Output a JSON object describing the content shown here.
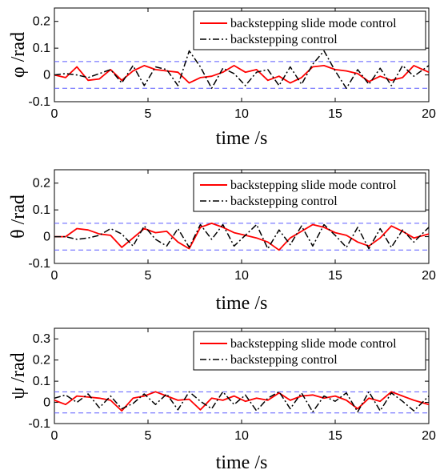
{
  "chart_data": [
    {
      "type": "line",
      "xlabel": "time /s",
      "ylabel": "φ /rad",
      "xlim": [
        0,
        20
      ],
      "ylim": [
        -0.1,
        0.25
      ],
      "xticks": [
        "0",
        "5",
        "10",
        "15",
        "20"
      ],
      "yticks": [
        "-0.1",
        "0",
        "0.1",
        "0.2"
      ],
      "bounds": [
        0.05,
        -0.05
      ],
      "grid": false,
      "legend_position": "top-right",
      "series": [
        {
          "name": "backstepping slide mode control",
          "color": "#ff0000",
          "x": [
            0,
            0.6,
            1.2,
            1.8,
            2.4,
            3.0,
            3.6,
            4.2,
            4.8,
            5.4,
            6.0,
            6.6,
            7.2,
            7.8,
            8.4,
            9.0,
            9.6,
            10.2,
            10.8,
            11.4,
            12.0,
            12.6,
            13.2,
            13.8,
            14.4,
            15.0,
            15.6,
            16.2,
            16.8,
            17.4,
            18.0,
            18.6,
            19.2,
            20.0
          ],
          "y": [
            0,
            -0.01,
            0.03,
            -0.02,
            -0.015,
            0.02,
            -0.02,
            0.015,
            0.035,
            0.02,
            0.015,
            0.01,
            -0.03,
            -0.01,
            -0.005,
            0.01,
            0.035,
            0.01,
            0.02,
            -0.02,
            -0.005,
            -0.03,
            -0.01,
            0.03,
            0.035,
            0.02,
            0.015,
            0.005,
            -0.025,
            -0.005,
            -0.02,
            -0.01,
            0.035,
            0.01
          ]
        },
        {
          "name": "backstepping control",
          "color": "#000000",
          "x": [
            0,
            0.6,
            1.2,
            1.8,
            2.4,
            3.0,
            3.6,
            4.2,
            4.8,
            5.4,
            6.0,
            6.6,
            7.2,
            7.8,
            8.4,
            9.0,
            9.6,
            10.2,
            10.8,
            11.4,
            12.0,
            12.6,
            13.2,
            13.8,
            14.4,
            15.0,
            15.6,
            16.2,
            16.8,
            17.4,
            18.0,
            18.6,
            19.2,
            20.0
          ],
          "y": [
            0,
            0.005,
            0,
            -0.01,
            0.005,
            0.02,
            -0.03,
            0.035,
            -0.04,
            0.03,
            0.02,
            -0.04,
            0.09,
            0.03,
            -0.05,
            0.025,
            0.005,
            -0.04,
            0.01,
            0.02,
            -0.04,
            0.03,
            -0.035,
            0.04,
            0.09,
            0.015,
            -0.05,
            0.02,
            -0.035,
            0.025,
            -0.04,
            0.035,
            -0.005,
            0.035
          ]
        }
      ]
    },
    {
      "type": "line",
      "xlabel": "time /s",
      "ylabel": "θ /rad",
      "xlim": [
        0,
        20
      ],
      "ylim": [
        -0.1,
        0.25
      ],
      "xticks": [
        "0",
        "5",
        "10",
        "15",
        "20"
      ],
      "yticks": [
        "-0.1",
        "0",
        "0.1",
        "0.2"
      ],
      "bounds": [
        0.05,
        -0.05
      ],
      "grid": false,
      "legend_position": "top-right",
      "series": [
        {
          "name": "backstepping slide mode control",
          "color": "#ff0000",
          "x": [
            0,
            0.6,
            1.2,
            1.8,
            2.4,
            3.0,
            3.6,
            4.2,
            4.8,
            5.4,
            6.0,
            6.6,
            7.2,
            7.8,
            8.4,
            9.0,
            9.6,
            10.2,
            10.8,
            11.4,
            12.0,
            12.6,
            13.2,
            13.8,
            14.4,
            15.0,
            15.6,
            16.2,
            16.8,
            17.4,
            18.0,
            18.6,
            19.2,
            20.0
          ],
          "y": [
            0,
            0,
            0.03,
            0.025,
            0.01,
            0.005,
            -0.04,
            -0.005,
            0.03,
            0.015,
            0.02,
            -0.02,
            -0.045,
            0.035,
            0.05,
            0.035,
            0.015,
            0.005,
            -0.005,
            -0.02,
            -0.05,
            -0.005,
            0.02,
            0.045,
            0.035,
            0.015,
            0.005,
            -0.02,
            -0.035,
            -0.005,
            0.04,
            0.02,
            -0.005,
            0.01
          ]
        },
        {
          "name": "backstepping control",
          "color": "#000000",
          "x": [
            0,
            0.6,
            1.2,
            1.8,
            2.4,
            3.0,
            3.6,
            4.2,
            4.8,
            5.4,
            6.0,
            6.6,
            7.2,
            7.8,
            8.4,
            9.0,
            9.6,
            10.2,
            10.8,
            11.4,
            12.0,
            12.6,
            13.2,
            13.8,
            14.4,
            15.0,
            15.6,
            16.2,
            16.8,
            17.4,
            18.0,
            18.6,
            19.2,
            20.0
          ],
          "y": [
            0,
            0,
            -0.01,
            -0.005,
            0.005,
            0.03,
            0.01,
            -0.035,
            0.04,
            -0.01,
            -0.035,
            0.03,
            -0.04,
            0.045,
            -0.01,
            0.045,
            -0.035,
            0.005,
            0.045,
            -0.045,
            0.025,
            -0.03,
            0.04,
            -0.035,
            0.045,
            0.005,
            -0.04,
            0.035,
            -0.045,
            0.03,
            -0.04,
            0.025,
            -0.02,
            0.035
          ]
        }
      ]
    },
    {
      "type": "line",
      "xlabel": "time /s",
      "ylabel": "ψ /rad",
      "xlim": [
        0,
        20
      ],
      "ylim": [
        -0.1,
        0.35
      ],
      "xticks": [
        "0",
        "5",
        "10",
        "15",
        "20"
      ],
      "yticks": [
        "-0.1",
        "0",
        "0.1",
        "0.2",
        "0.3"
      ],
      "bounds": [
        0.05,
        -0.05
      ],
      "grid": false,
      "legend_position": "top-right",
      "series": [
        {
          "name": "backstepping slide mode control",
          "color": "#ff0000",
          "x": [
            0,
            0.6,
            1.2,
            1.8,
            2.4,
            3.0,
            3.6,
            4.2,
            4.8,
            5.4,
            6.0,
            6.6,
            7.2,
            7.8,
            8.4,
            9.0,
            9.6,
            10.2,
            10.8,
            11.4,
            12.0,
            12.6,
            13.2,
            13.8,
            14.4,
            15.0,
            15.6,
            16.2,
            16.8,
            17.4,
            18.0,
            18.6,
            19.2,
            20.0
          ],
          "y": [
            0.01,
            -0.01,
            0.03,
            0.025,
            0.02,
            0.01,
            -0.04,
            0.02,
            0.03,
            0.05,
            0.03,
            0.01,
            0.015,
            -0.035,
            0.02,
            0.01,
            0.03,
            0.005,
            0.02,
            0.01,
            0.045,
            0.01,
            0.03,
            0.035,
            0.02,
            0.03,
            0.01,
            -0.03,
            0.02,
            0.005,
            0.05,
            0.03,
            0.01,
            -0.01
          ]
        },
        {
          "name": "backstepping control",
          "color": "#000000",
          "x": [
            0,
            0.6,
            1.2,
            1.8,
            2.4,
            3.0,
            3.6,
            4.2,
            4.8,
            5.4,
            6.0,
            6.6,
            7.2,
            7.8,
            8.4,
            9.0,
            9.6,
            10.2,
            10.8,
            11.4,
            12.0,
            12.6,
            13.2,
            13.8,
            14.4,
            15.0,
            15.6,
            16.2,
            16.8,
            17.4,
            18.0,
            18.6,
            19.2,
            20.0
          ],
          "y": [
            0.02,
            0.035,
            0,
            0.04,
            -0.025,
            0.03,
            -0.03,
            -0.005,
            0.04,
            -0.01,
            0.04,
            -0.035,
            0.05,
            0.005,
            -0.03,
            0.05,
            -0.01,
            0.035,
            -0.04,
            0.02,
            0.05,
            -0.03,
            0.045,
            -0.045,
            0.03,
            0.005,
            0.045,
            -0.045,
            0.05,
            -0.04,
            0.045,
            0.005,
            -0.04,
            0.03
          ]
        }
      ]
    }
  ]
}
